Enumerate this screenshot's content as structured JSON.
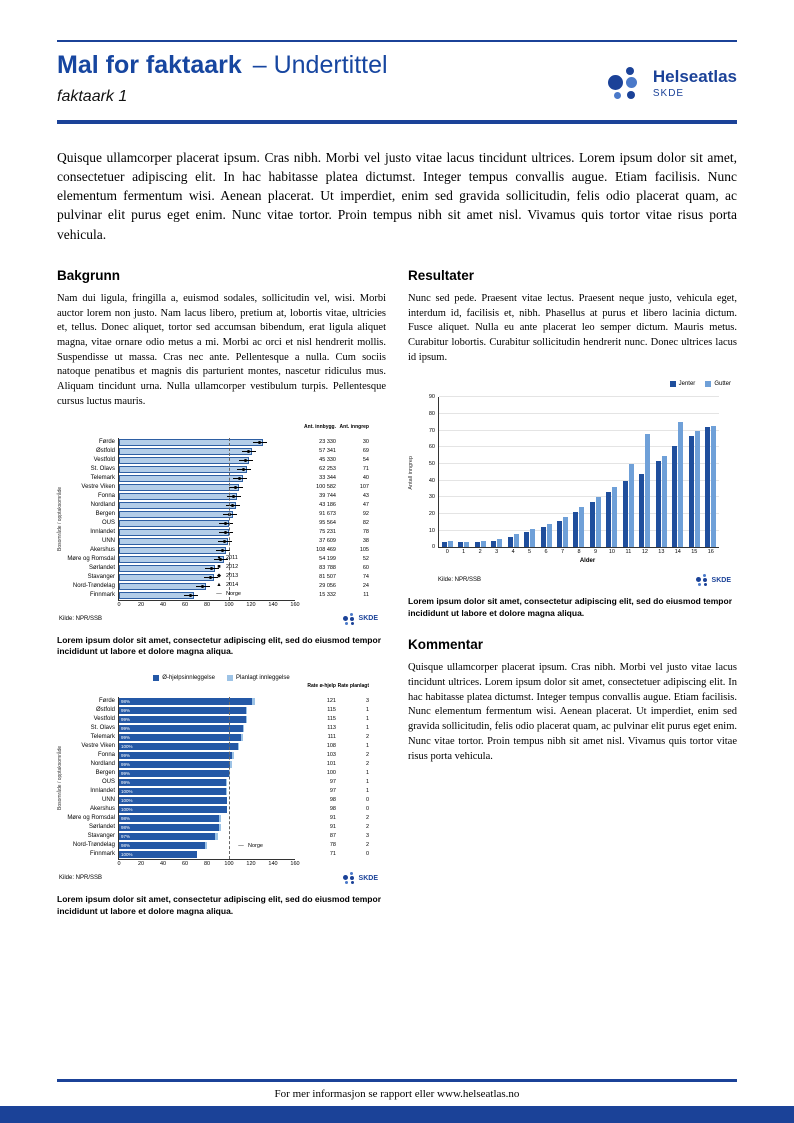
{
  "header": {
    "title_bold": "Mal for faktaark",
    "title_rest": "– Undertittel",
    "subtitle": "faktaark 1",
    "logo_name": "Helseatlas",
    "logo_sub": "SKDE"
  },
  "intro": "Quisque ullamcorper placerat ipsum. Cras nibh. Morbi vel justo vitae lacus tincidunt ultrices. Lorem ipsum dolor sit amet, consectetuer adipiscing elit. In hac habitasse platea dictumst. Integer tempus convallis augue. Etiam facilisis. Nunc elementum fermentum wisi. Aenean placerat. Ut imperdiet, enim sed gravida sollicitudin, felis odio placerat quam, ac pulvinar elit purus eget enim. Nunc vitae tortor. Proin tempus nibh sit amet nisl. Vivamus quis tortor vitae risus porta vehicula.",
  "sections": {
    "bakgrunn": {
      "heading": "Bakgrunn",
      "body": "Nam dui ligula, fringilla a, euismod sodales, sollicitudin vel, wisi. Morbi auctor lorem non justo. Nam lacus libero, pretium at, lobortis vitae, ultricies et, tellus. Donec aliquet, tortor sed accumsan bibendum, erat ligula aliquet magna, vitae ornare odio metus a mi. Morbi ac orci et nisl hendrerit mollis. Suspendisse ut massa. Cras nec ante. Pellentesque a nulla. Cum sociis natoque penatibus et magnis dis parturient montes, nascetur ridiculus mus. Aliquam tincidunt urna. Nulla ullamcorper vestibulum turpis. Pellentesque cursus luctus mauris."
    },
    "resultater": {
      "heading": "Resultater",
      "body": "Nunc sed pede. Praesent vitae lectus. Praesent neque justo, vehicula eget, interdum id, facilisis et, nibh. Phasellus at purus et libero lacinia dictum. Fusce aliquet. Nulla eu ante placerat leo semper dictum. Mauris metus. Curabitur lobortis. Curabitur sollicitudin hendrerit nunc. Donec ultrices lacus id ipsum."
    },
    "kommentar": {
      "heading": "Kommentar",
      "body": "Quisque ullamcorper placerat ipsum. Cras nibh. Morbi vel justo vitae lacus tincidunt ultrices. Lorem ipsum dolor sit amet, consectetuer adipiscing elit. In hac habitasse platea dictumst. Integer tempus convallis augue. Etiam facilisis. Nunc elementum fermentum wisi. Aenean placerat. Ut imperdiet, enim sed gravida sollicitudin, felis odio placerat quam, ac pulvinar elit purus eget enim. Nunc vitae tortor. Proin tempus nibh sit amet nisl. Vivamus quis tortor vitae risus porta vehicula."
    }
  },
  "captions": {
    "chart1": "Lorem ipsum dolor sit amet, consectetur adipiscing elit, sed do eiusmod tempor incididunt ut labore et dolore magna aliqua.",
    "chart2": "Lorem ipsum dolor sit amet, consectetur adipiscing elit, sed do eiusmod tempor incididunt ut labore et dolore magna aliqua.",
    "chart3": "Lorem ipsum dolor sit amet, consectetur adipiscing elit, sed do eiusmod tempor incididunt ut labore et dolore magna aliqua."
  },
  "footer": {
    "text": "For mer informasjon se rapport eller www.helseatlas.no"
  },
  "chart_data": [
    {
      "type": "bar",
      "orientation": "horizontal",
      "ylabel": "Bosområde / opptaksområde",
      "categories": [
        "Førde",
        "Østfold",
        "Vestfold",
        "St. Olavs",
        "Telemark",
        "Vestre Viken",
        "Fonna",
        "Nordland",
        "Bergen",
        "OUS",
        "Innlandet",
        "UNN",
        "Akershus",
        "Møre og Romsdal",
        "Sørlandet",
        "Stavanger",
        "Nord-Trøndelag",
        "Finnmark"
      ],
      "values": [
        131,
        121,
        118,
        116,
        113,
        109,
        107,
        106,
        104,
        100,
        100,
        99,
        97,
        95,
        87,
        86,
        79,
        68
      ],
      "xlim": [
        0,
        160
      ],
      "xticks": [
        0,
        20,
        40,
        60,
        80,
        100,
        120,
        140,
        160
      ],
      "reference_line": 100,
      "legend": [
        "2011",
        "2012",
        "2013",
        "2014",
        "Norge"
      ],
      "table_headers": [
        "Ant. innbygg.",
        "Ant. inngrep"
      ],
      "table": [
        [
          "23 330",
          "30"
        ],
        [
          "57 341",
          "69"
        ],
        [
          "45 330",
          "54"
        ],
        [
          "62 253",
          "71"
        ],
        [
          "33 344",
          "40"
        ],
        [
          "100 582",
          "107"
        ],
        [
          "39 744",
          "43"
        ],
        [
          "43 186",
          "47"
        ],
        [
          "91 673",
          "92"
        ],
        [
          "95 564",
          "82"
        ],
        [
          "75 231",
          "78"
        ],
        [
          "37 609",
          "38"
        ],
        [
          "108 469",
          "105"
        ],
        [
          "54 199",
          "52"
        ],
        [
          "83 788",
          "60"
        ],
        [
          "81 507",
          "74"
        ],
        [
          "29 056",
          "24"
        ],
        [
          "15 332",
          "11"
        ]
      ],
      "bar_color": "#b3cde8",
      "source": "Kilde: NPR/SSB",
      "logo": "SKDE"
    },
    {
      "type": "bar",
      "orientation": "vertical",
      "xlabel": "Alder",
      "ylabel": "Antall inngrep",
      "categories": [
        "0",
        "1",
        "2",
        "3",
        "4",
        "5",
        "6",
        "7",
        "8",
        "9",
        "10",
        "11",
        "12",
        "13",
        "14",
        "15",
        "16"
      ],
      "series": [
        {
          "name": "Jenter",
          "color": "#1f4e9c",
          "values": [
            3,
            3,
            3,
            4,
            6,
            9,
            12,
            16,
            21,
            27,
            33,
            40,
            44,
            52,
            61,
            67,
            72
          ]
        },
        {
          "name": "Gutter",
          "color": "#6fa0d8",
          "values": [
            4,
            3,
            4,
            5,
            8,
            11,
            14,
            18,
            24,
            30,
            36,
            50,
            68,
            55,
            75,
            70,
            73
          ]
        }
      ],
      "ylim": [
        0,
        90
      ],
      "ytick_step": 10,
      "grid": true,
      "legend_position": "top-right",
      "source": "Kilde: NPR/SSB",
      "logo": "SKDE"
    },
    {
      "type": "bar",
      "orientation": "horizontal",
      "stacked": true,
      "ylabel": "Bosområde / opptaksområde",
      "categories": [
        "Førde",
        "Østfold",
        "Vestfold",
        "St. Olavs",
        "Telemark",
        "Vestre Viken",
        "Fonna",
        "Nordland",
        "Bergen",
        "OUS",
        "Innlandet",
        "UNN",
        "Akershus",
        "Møre og Romsdal",
        "Sørlandet",
        "Stavanger",
        "Nord-Trøndelag",
        "Finnmark"
      ],
      "series": [
        {
          "name": "Ø-hjelpsinnleggelse",
          "color": "#2458a6",
          "values": [
            121,
            115,
            115,
            113,
            111,
            108,
            103,
            101,
            100,
            97,
            97,
            98,
            98,
            91,
            91,
            87,
            78,
            71
          ]
        },
        {
          "name": "Planlagt innleggelse",
          "color": "#9dc3e6",
          "values": [
            3,
            1,
            1,
            1,
            2,
            1,
            2,
            2,
            1,
            1,
            1,
            0,
            0,
            2,
            2,
            3,
            2,
            0
          ]
        }
      ],
      "percent_labels": [
        "98%",
        "99%",
        "99%",
        "99%",
        "99%",
        "100%",
        "99%",
        "99%",
        "99%",
        "99%",
        "100%",
        "100%",
        "100%",
        "98%",
        "98%",
        "97%",
        "98%",
        "100%"
      ],
      "xlim": [
        0,
        160
      ],
      "xticks": [
        0,
        20,
        40,
        60,
        80,
        100,
        120,
        140,
        160
      ],
      "reference_line": 100,
      "reference_label": "Norge",
      "table_headers": [
        "Rate ø-hjelp",
        "Rate planlagt"
      ],
      "table": [
        [
          "121",
          "3"
        ],
        [
          "115",
          "1"
        ],
        [
          "115",
          "1"
        ],
        [
          "113",
          "1"
        ],
        [
          "111",
          "2"
        ],
        [
          "108",
          "1"
        ],
        [
          "103",
          "2"
        ],
        [
          "101",
          "2"
        ],
        [
          "100",
          "1"
        ],
        [
          "97",
          "1"
        ],
        [
          "97",
          "1"
        ],
        [
          "98",
          "0"
        ],
        [
          "98",
          "0"
        ],
        [
          "91",
          "2"
        ],
        [
          "91",
          "2"
        ],
        [
          "87",
          "3"
        ],
        [
          "78",
          "2"
        ],
        [
          "71",
          "0"
        ]
      ],
      "source": "Kilde: NPR/SSB",
      "logo": "SKDE"
    }
  ]
}
